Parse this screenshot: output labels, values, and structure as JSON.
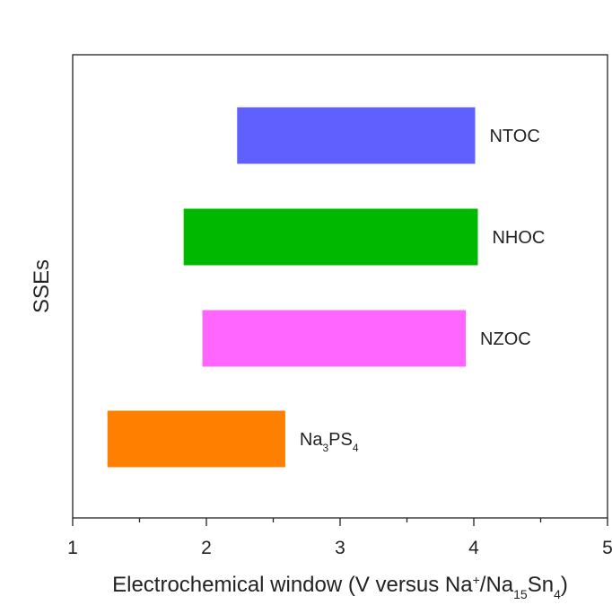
{
  "chart_data": {
    "type": "bar",
    "orientation": "horizontal-range",
    "xlabel_parts": [
      {
        "t": "Electrochemical window (V versus Na"
      },
      {
        "t": "+",
        "s": "sup"
      },
      {
        "t": "/Na"
      },
      {
        "t": "15",
        "s": "sub"
      },
      {
        "t": "Sn"
      },
      {
        "t": "4",
        "s": "sub"
      },
      {
        "t": ")"
      }
    ],
    "ylabel": "SSEs",
    "xlim": [
      1,
      5
    ],
    "xticks": [
      1,
      2,
      3,
      4,
      5
    ],
    "xtick_labels": [
      "1",
      "2",
      "3",
      "4",
      "5"
    ],
    "grid": false,
    "series": [
      {
        "name_parts": [
          {
            "t": "NTOC"
          }
        ],
        "start": 2.23,
        "end": 4.01,
        "color": "#6060ff"
      },
      {
        "name_parts": [
          {
            "t": "NHOC"
          }
        ],
        "start": 1.83,
        "end": 4.03,
        "color": "#00b800"
      },
      {
        "name_parts": [
          {
            "t": "NZOC"
          }
        ],
        "start": 1.97,
        "end": 3.94,
        "color": "#ff66ff"
      },
      {
        "name_parts": [
          {
            "t": "Na"
          },
          {
            "t": "3",
            "s": "sub"
          },
          {
            "t": "PS"
          },
          {
            "t": "4",
            "s": "sub"
          }
        ],
        "start": 1.26,
        "end": 2.59,
        "color": "#ff8000"
      }
    ]
  }
}
